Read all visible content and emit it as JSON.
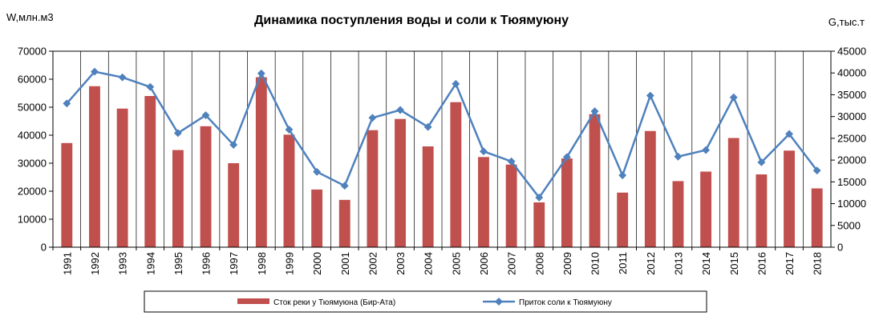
{
  "chart_data": {
    "type": "bar+line",
    "title": "Динамика поступления воды и соли к Тюямуюну",
    "ylabel_left": "W,млн.м3",
    "ylabel_right": "G,тыс.т",
    "ylim_left": [
      0,
      70000
    ],
    "ylim_right": [
      0,
      45000
    ],
    "yticks_left": [
      "0",
      "10000",
      "20000",
      "30000",
      "40000",
      "50000",
      "60000",
      "70000"
    ],
    "yticks_right": [
      "0",
      "5000",
      "10000",
      "15000",
      "20000",
      "25000",
      "30000",
      "35000",
      "40000",
      "45000"
    ],
    "grid": "vertical",
    "legend_position": "bottom",
    "categories": [
      "1991",
      "1992",
      "1993",
      "1994",
      "1995",
      "1996",
      "1997",
      "1998",
      "1999",
      "2000",
      "2001",
      "2002",
      "2003",
      "2004",
      "2005",
      "2006",
      "2007",
      "2008",
      "2009",
      "2010",
      "2011",
      "2012",
      "2013",
      "2014",
      "2015",
      "2016",
      "2017",
      "2018"
    ],
    "series": [
      {
        "name": "Сток реки у Тюямуюна (Бир-Ата)",
        "type": "bar",
        "axis": "left",
        "color": "#C0504D",
        "values": [
          37200,
          57500,
          49500,
          54000,
          34700,
          43200,
          30000,
          60700,
          40200,
          20600,
          16900,
          41800,
          45800,
          36000,
          51800,
          32200,
          29500,
          16000,
          31700,
          47500,
          19500,
          41500,
          23600,
          27000,
          39000,
          26000,
          34500,
          21000
        ]
      },
      {
        "name": "Приток соли к Тюямуюну",
        "type": "line",
        "axis": "right",
        "color": "#4F81BD",
        "values": [
          33000,
          40300,
          39000,
          36800,
          26200,
          30300,
          23500,
          39900,
          27000,
          17300,
          14100,
          29700,
          31500,
          27600,
          37500,
          22000,
          19700,
          11400,
          20700,
          31200,
          16500,
          34800,
          20800,
          22300,
          34400,
          19500,
          26000,
          17600
        ]
      }
    ]
  }
}
